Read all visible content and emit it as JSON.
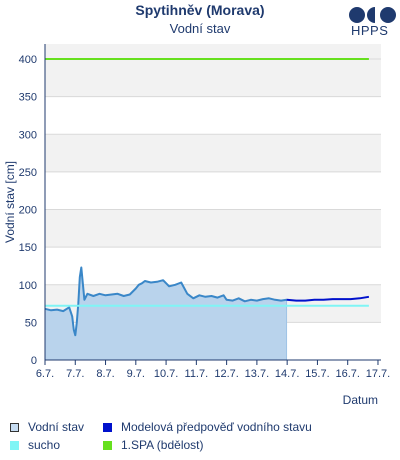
{
  "header": {
    "title": "Spytihněv (Morava)",
    "subtitle": "Vodní stav",
    "logo_text": "HPPS"
  },
  "colors": {
    "observed_line": "#3a87c8",
    "observed_fill": "#b9d3ec",
    "forecast": "#0011cc",
    "drought": "#7ff5f5",
    "spa1": "#66e01e",
    "band": "#f2f2f2",
    "grid": "#d9d9d9",
    "axis": "#1f3a6e"
  },
  "legend": [
    {
      "key": "observed",
      "label": "Vodní stav",
      "swatch_fill": "#c6dcf2",
      "swatch_border": "#333333"
    },
    {
      "key": "forecast",
      "label": "Modelová předpověď vodního stavu",
      "swatch_fill": "#0011cc",
      "swatch_border": "#0011cc"
    },
    {
      "key": "drought",
      "label": "sucho",
      "swatch_fill": "#7ff5f5",
      "swatch_border": "#7ff5f5"
    },
    {
      "key": "spa1",
      "label": "1.SPA (bdělost)",
      "swatch_fill": "#66e01e",
      "swatch_border": "#66e01e"
    }
  ],
  "chart_data": {
    "type": "line",
    "ylabel": "Vodní stav [cm]",
    "xlabel": "Datum",
    "ylim": [
      0,
      420
    ],
    "yticks": [
      0,
      50,
      100,
      150,
      200,
      250,
      300,
      350,
      400
    ],
    "xlim": [
      6,
      17.1
    ],
    "xticks": [
      {
        "x": 6,
        "label": "6.7."
      },
      {
        "x": 7,
        "label": "7.7."
      },
      {
        "x": 8,
        "label": "8.7."
      },
      {
        "x": 9,
        "label": "9.7."
      },
      {
        "x": 10,
        "label": "10.7."
      },
      {
        "x": 11,
        "label": "11.7."
      },
      {
        "x": 12,
        "label": "12.7."
      },
      {
        "x": 13,
        "label": "13.7."
      },
      {
        "x": 14,
        "label": "14.7."
      },
      {
        "x": 15,
        "label": "15.7."
      },
      {
        "x": 16,
        "label": "16.7."
      },
      {
        "x": 17,
        "label": "17.7."
      }
    ],
    "grid": true,
    "series": [
      {
        "name": "Vodní stav",
        "style": "area",
        "x": [
          6.0,
          6.2,
          6.4,
          6.6,
          6.8,
          6.9,
          6.95,
          7.0,
          7.05,
          7.1,
          7.15,
          7.2,
          7.3,
          7.4,
          7.6,
          7.8,
          8.0,
          8.2,
          8.4,
          8.6,
          8.8,
          9.0,
          9.1,
          9.2,
          9.3,
          9.5,
          9.7,
          9.9,
          10.1,
          10.3,
          10.5,
          10.7,
          10.9,
          11.1,
          11.3,
          11.5,
          11.7,
          11.9,
          12.0,
          12.2,
          12.4,
          12.6,
          12.8,
          13.0,
          13.2,
          13.4,
          13.6,
          13.8,
          13.98
        ],
        "values": [
          68,
          66,
          67,
          65,
          70,
          58,
          40,
          33,
          50,
          75,
          110,
          123,
          80,
          88,
          85,
          88,
          86,
          87,
          88,
          85,
          87,
          95,
          100,
          102,
          105,
          103,
          104,
          106,
          98,
          100,
          103,
          88,
          82,
          86,
          84,
          85,
          83,
          86,
          80,
          79,
          82,
          78,
          80,
          79,
          81,
          82,
          80,
          79,
          80
        ]
      },
      {
        "name": "Modelová předpověď vodního stavu",
        "style": "line",
        "x": [
          13.98,
          14.3,
          14.6,
          14.9,
          15.2,
          15.5,
          15.8,
          16.1,
          16.4,
          16.7
        ],
        "values": [
          80,
          79,
          79,
          80,
          80,
          81,
          81,
          81,
          82,
          84
        ]
      },
      {
        "name": "sucho",
        "style": "hline",
        "x": [
          6.0,
          16.7
        ],
        "values": [
          72,
          72
        ]
      },
      {
        "name": "1.SPA (bdělost)",
        "style": "hline",
        "x": [
          6.0,
          16.7
        ],
        "values": [
          400,
          400
        ]
      }
    ]
  }
}
